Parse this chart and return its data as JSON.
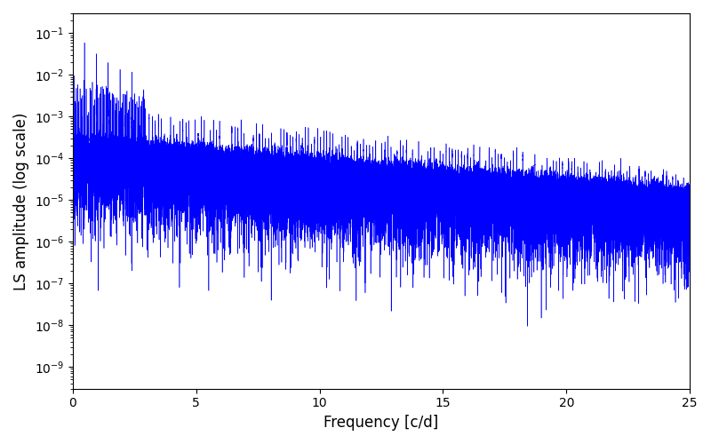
{
  "xlabel": "Frequency [c/d]",
  "ylabel": "LS amplitude (log scale)",
  "xlim": [
    0,
    25
  ],
  "ylim": [
    3e-10,
    0.3
  ],
  "color": "#0000ff",
  "linewidth": 0.4,
  "background_color": "#ffffff",
  "figsize": [
    8.0,
    5.0
  ],
  "dpi": 100,
  "seed": 12345,
  "n_points": 50000,
  "freq_max": 25.0,
  "xlabel_fontsize": 12,
  "ylabel_fontsize": 12
}
